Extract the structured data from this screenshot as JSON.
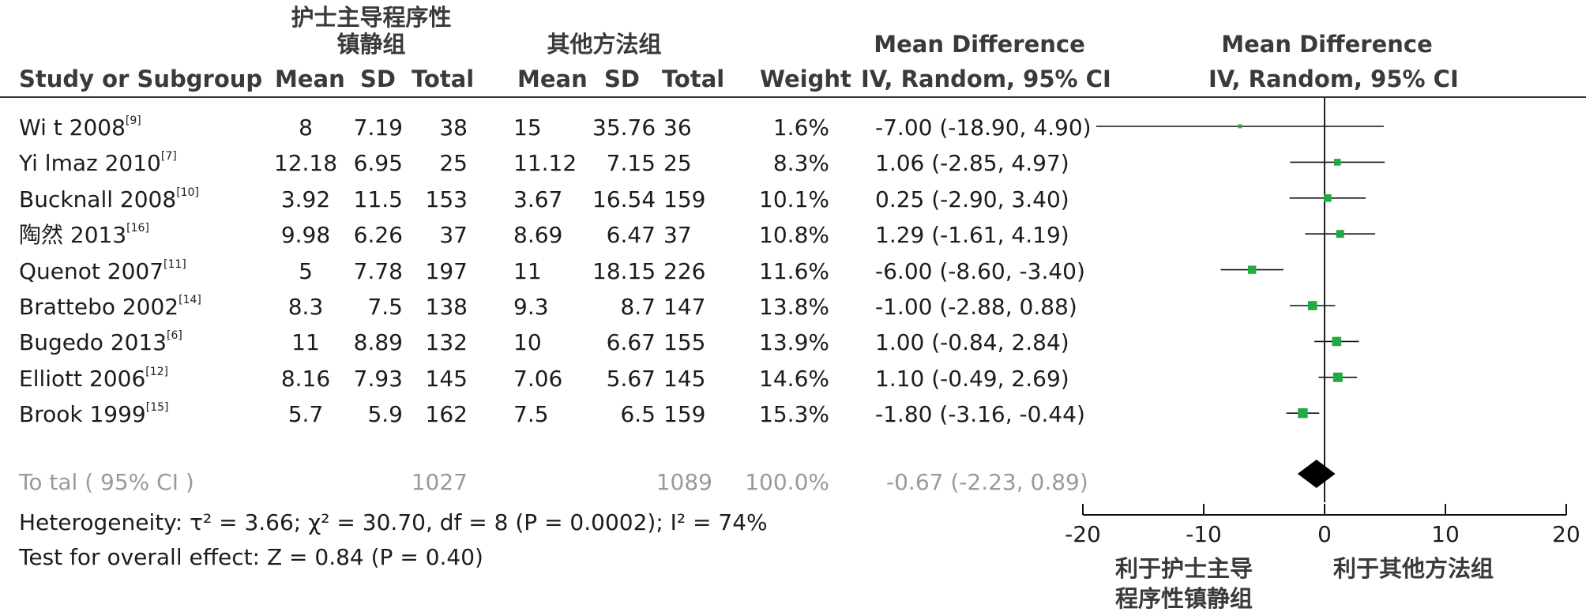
{
  "header": {
    "group1_line1": "护士主导程序性",
    "group1_line2": "镇静组",
    "group2": "其他方法组",
    "md_title": "Mean Difference",
    "md_sub": "IV, Random, 95% CI",
    "plot_title": "Mean Difference",
    "plot_sub": "IV, Random, 95% CI",
    "col_study": "Study or Subgroup",
    "col_mean1": "Mean",
    "col_sd1": "SD",
    "col_total1": "Total",
    "col_mean2": "Mean",
    "col_sd2": "SD",
    "col_total2": "Total",
    "col_weight": "Weight"
  },
  "rows": [
    {
      "study": "Wi t 2008",
      "ref": "[9]",
      "m1": "8",
      "sd1": "7.19",
      "n1": "38",
      "m2": "15",
      "sd2": "35.76",
      "n2": "36",
      "weight": "1.6%",
      "md": "-7.00 (-18.90, 4.90)"
    },
    {
      "study": "Yi lmaz 2010",
      "ref": "[7]",
      "m1": "12.18",
      "sd1": "6.95",
      "n1": "25",
      "m2": "11.12",
      "sd2": "7.15",
      "n2": "25",
      "weight": "8.3%",
      "md": "1.06 (-2.85, 4.97)"
    },
    {
      "study": "Bucknall 2008",
      "ref": "[10]",
      "m1": "3.92",
      "sd1": "11.5",
      "n1": "153",
      "m2": "3.67",
      "sd2": "16.54",
      "n2": "159",
      "weight": "10.1%",
      "md": "0.25 (-2.90, 3.40)"
    },
    {
      "study": "陶然 2013",
      "ref": "[16]",
      "m1": "9.98",
      "sd1": "6.26",
      "n1": "37",
      "m2": "8.69",
      "sd2": "6.47",
      "n2": "37",
      "weight": "10.8%",
      "md": "1.29 (-1.61, 4.19)"
    },
    {
      "study": "Quenot 2007",
      "ref": "[11]",
      "m1": "5",
      "sd1": "7.78",
      "n1": "197",
      "m2": "11",
      "sd2": "18.15",
      "n2": "226",
      "weight": "11.6%",
      "md": "-6.00 (-8.60, -3.40)"
    },
    {
      "study": "Brattebo 2002",
      "ref": "[14]",
      "m1": "8.3",
      "sd1": "7.5",
      "n1": "138",
      "m2": "9.3",
      "sd2": "8.7",
      "n2": "147",
      "weight": "13.8%",
      "md": "-1.00 (-2.88, 0.88)"
    },
    {
      "study": "Bugedo 2013",
      "ref": "[6]",
      "m1": "11",
      "sd1": "8.89",
      "n1": "132",
      "m2": "10",
      "sd2": "6.67",
      "n2": "155",
      "weight": "13.9%",
      "md": "1.00 (-0.84, 2.84)"
    },
    {
      "study": "Elliott 2006",
      "ref": "[12]",
      "m1": "8.16",
      "sd1": "7.93",
      "n1": "145",
      "m2": "7.06",
      "sd2": "5.67",
      "n2": "145",
      "weight": "14.6%",
      "md": "1.10 (-0.49, 2.69)"
    },
    {
      "study": "Brook 1999",
      "ref": "[15]",
      "m1": "5.7",
      "sd1": "5.9",
      "n1": "162",
      "m2": "7.5",
      "sd2": "6.5",
      "n2": "159",
      "weight": "15.3%",
      "md": "-1.80 (-3.16, -0.44)"
    }
  ],
  "total": {
    "label": "To tal ( 95% CI )",
    "n1": "1027",
    "n2": "1089",
    "weight": "100.0%",
    "md": "-0.67 (-2.23, 0.89)"
  },
  "heterogeneity": "Heterogeneity:  τ² = 3.66;  χ² = 30.70, df = 8 (P = 0.0002); I² = 74%",
  "overall_effect": "Test for overall effect: Z = 0.84 (P = 0.40)",
  "favours_left_line1": "利于护士主导",
  "favours_left_line2": "程序性镇静组",
  "favours_right": "利于其他方法组",
  "chart_data": {
    "type": "forest",
    "x_ticks": [
      -20,
      -10,
      0,
      10,
      20
    ],
    "xlim": [
      -20,
      20
    ],
    "marker_color": "#22aa44",
    "studies": [
      {
        "md": -7.0,
        "lo": -18.9,
        "hi": 4.9,
        "weight": 1.6
      },
      {
        "md": 1.06,
        "lo": -2.85,
        "hi": 4.97,
        "weight": 8.3
      },
      {
        "md": 0.25,
        "lo": -2.9,
        "hi": 3.4,
        "weight": 10.1
      },
      {
        "md": 1.29,
        "lo": -1.61,
        "hi": 4.19,
        "weight": 10.8
      },
      {
        "md": -6.0,
        "lo": -8.6,
        "hi": -3.4,
        "weight": 11.6
      },
      {
        "md": -1.0,
        "lo": -2.88,
        "hi": 0.88,
        "weight": 13.8
      },
      {
        "md": 1.0,
        "lo": -0.84,
        "hi": 2.84,
        "weight": 13.9
      },
      {
        "md": 1.1,
        "lo": -0.49,
        "hi": 2.69,
        "weight": 14.6
      },
      {
        "md": -1.8,
        "lo": -3.16,
        "hi": -0.44,
        "weight": 15.3
      }
    ],
    "pooled": {
      "md": -0.67,
      "lo": -2.23,
      "hi": 0.89
    }
  }
}
